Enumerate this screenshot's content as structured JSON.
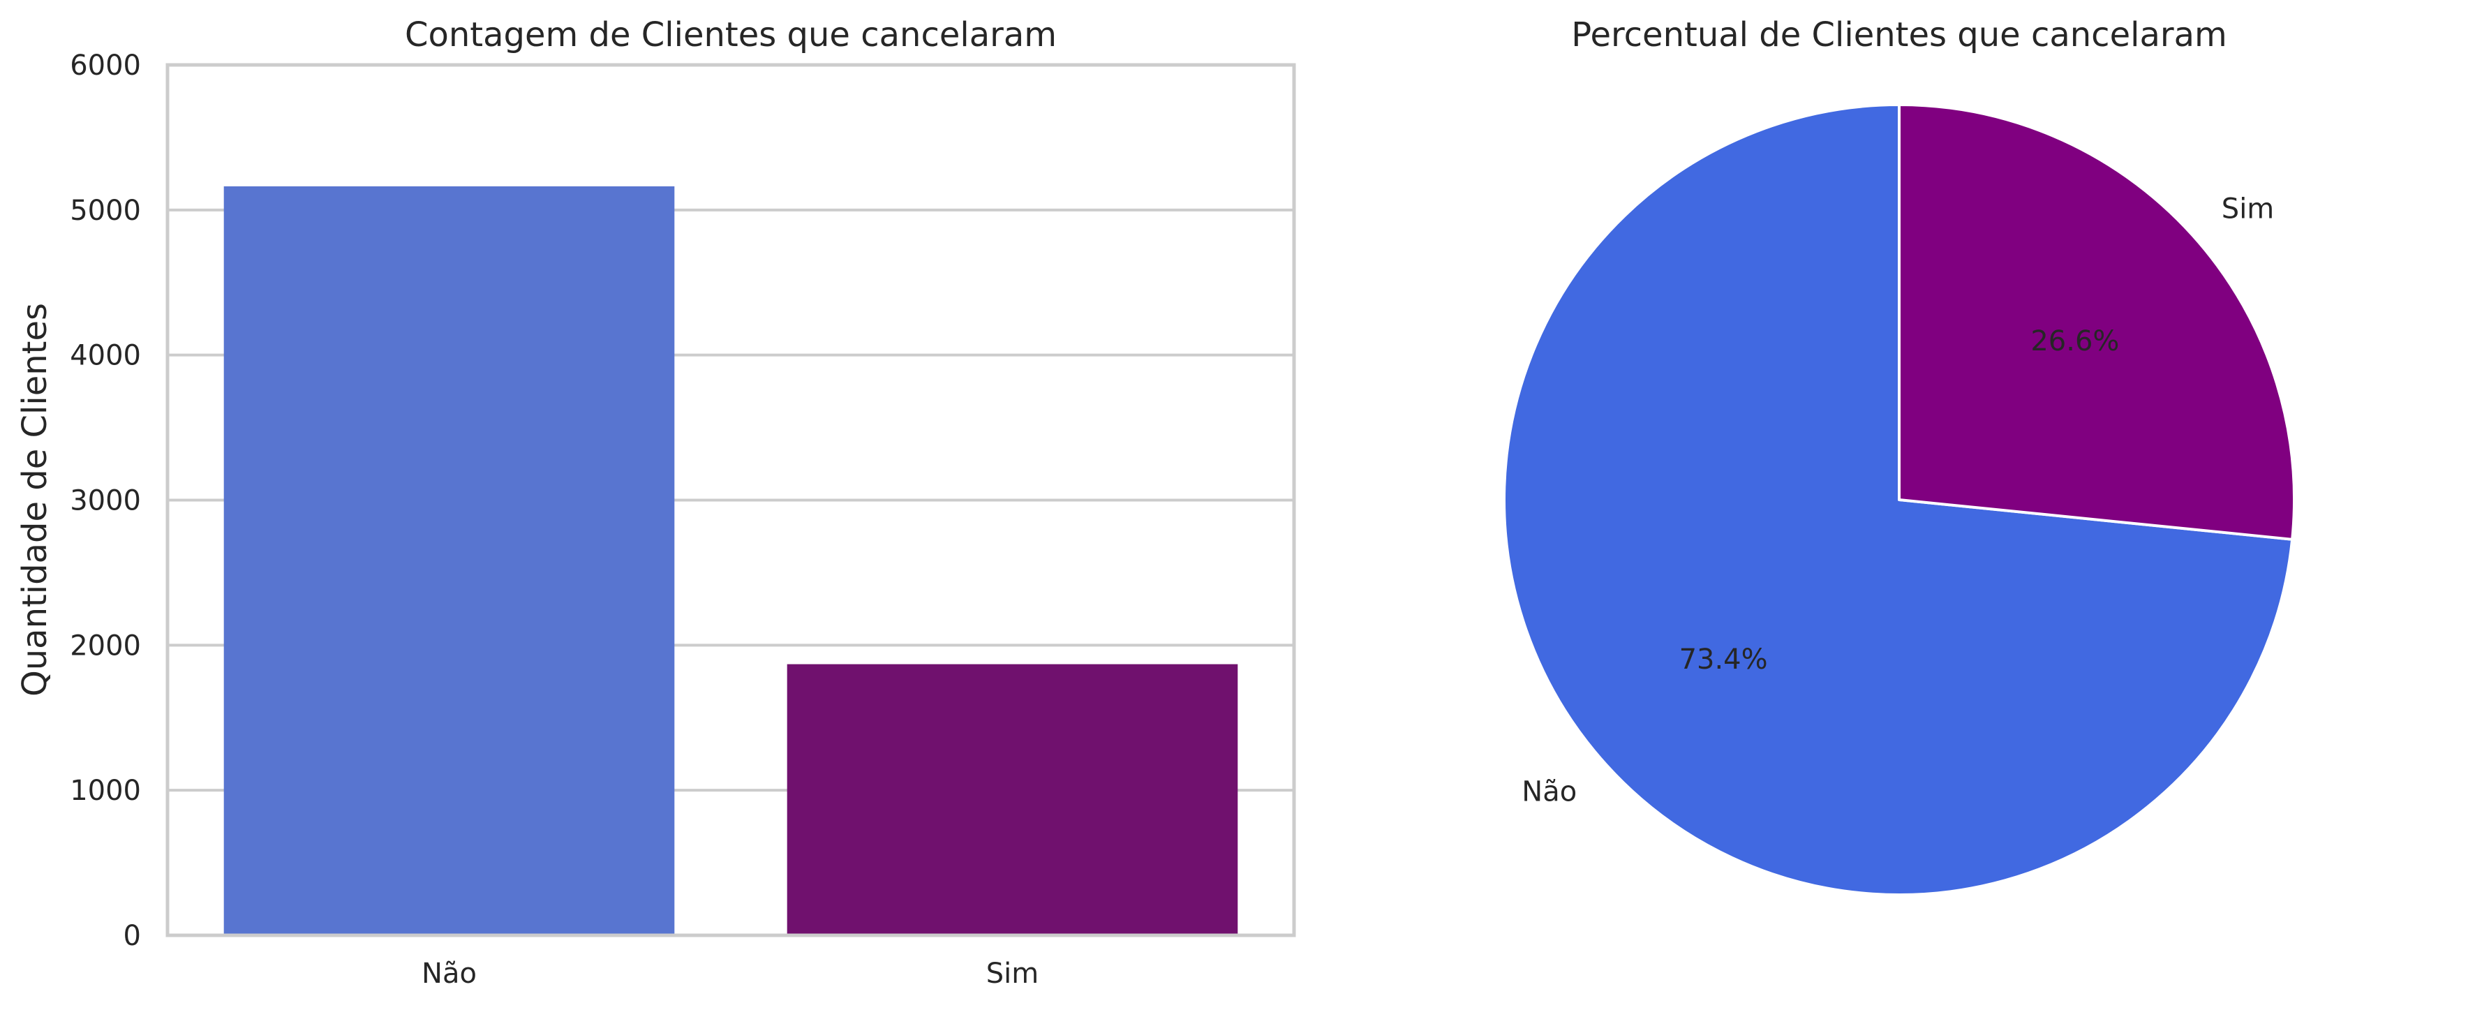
{
  "chart_data": [
    {
      "type": "bar",
      "title": "Contagem de Clientes que cancelaram",
      "xlabel": "",
      "ylabel": "Quantidade de Clientes",
      "categories": [
        "Não",
        "Sim"
      ],
      "values": [
        5163,
        1869
      ],
      "colors": [
        "#5875d0",
        "#70116e"
      ],
      "ylim": [
        0,
        6000
      ],
      "yticks": [
        0,
        1000,
        2000,
        3000,
        4000,
        5000,
        6000
      ],
      "grid": true
    },
    {
      "type": "pie",
      "title": "Percentual de Clientes que cancelaram",
      "labels": [
        "Não",
        "Sim"
      ],
      "values": [
        73.4,
        26.6
      ],
      "pct_labels": [
        "73.4%",
        "26.6%"
      ],
      "colors": [
        "#4169e1",
        "#800080"
      ],
      "startangle": 90,
      "direction": "counterclockwise"
    }
  ]
}
